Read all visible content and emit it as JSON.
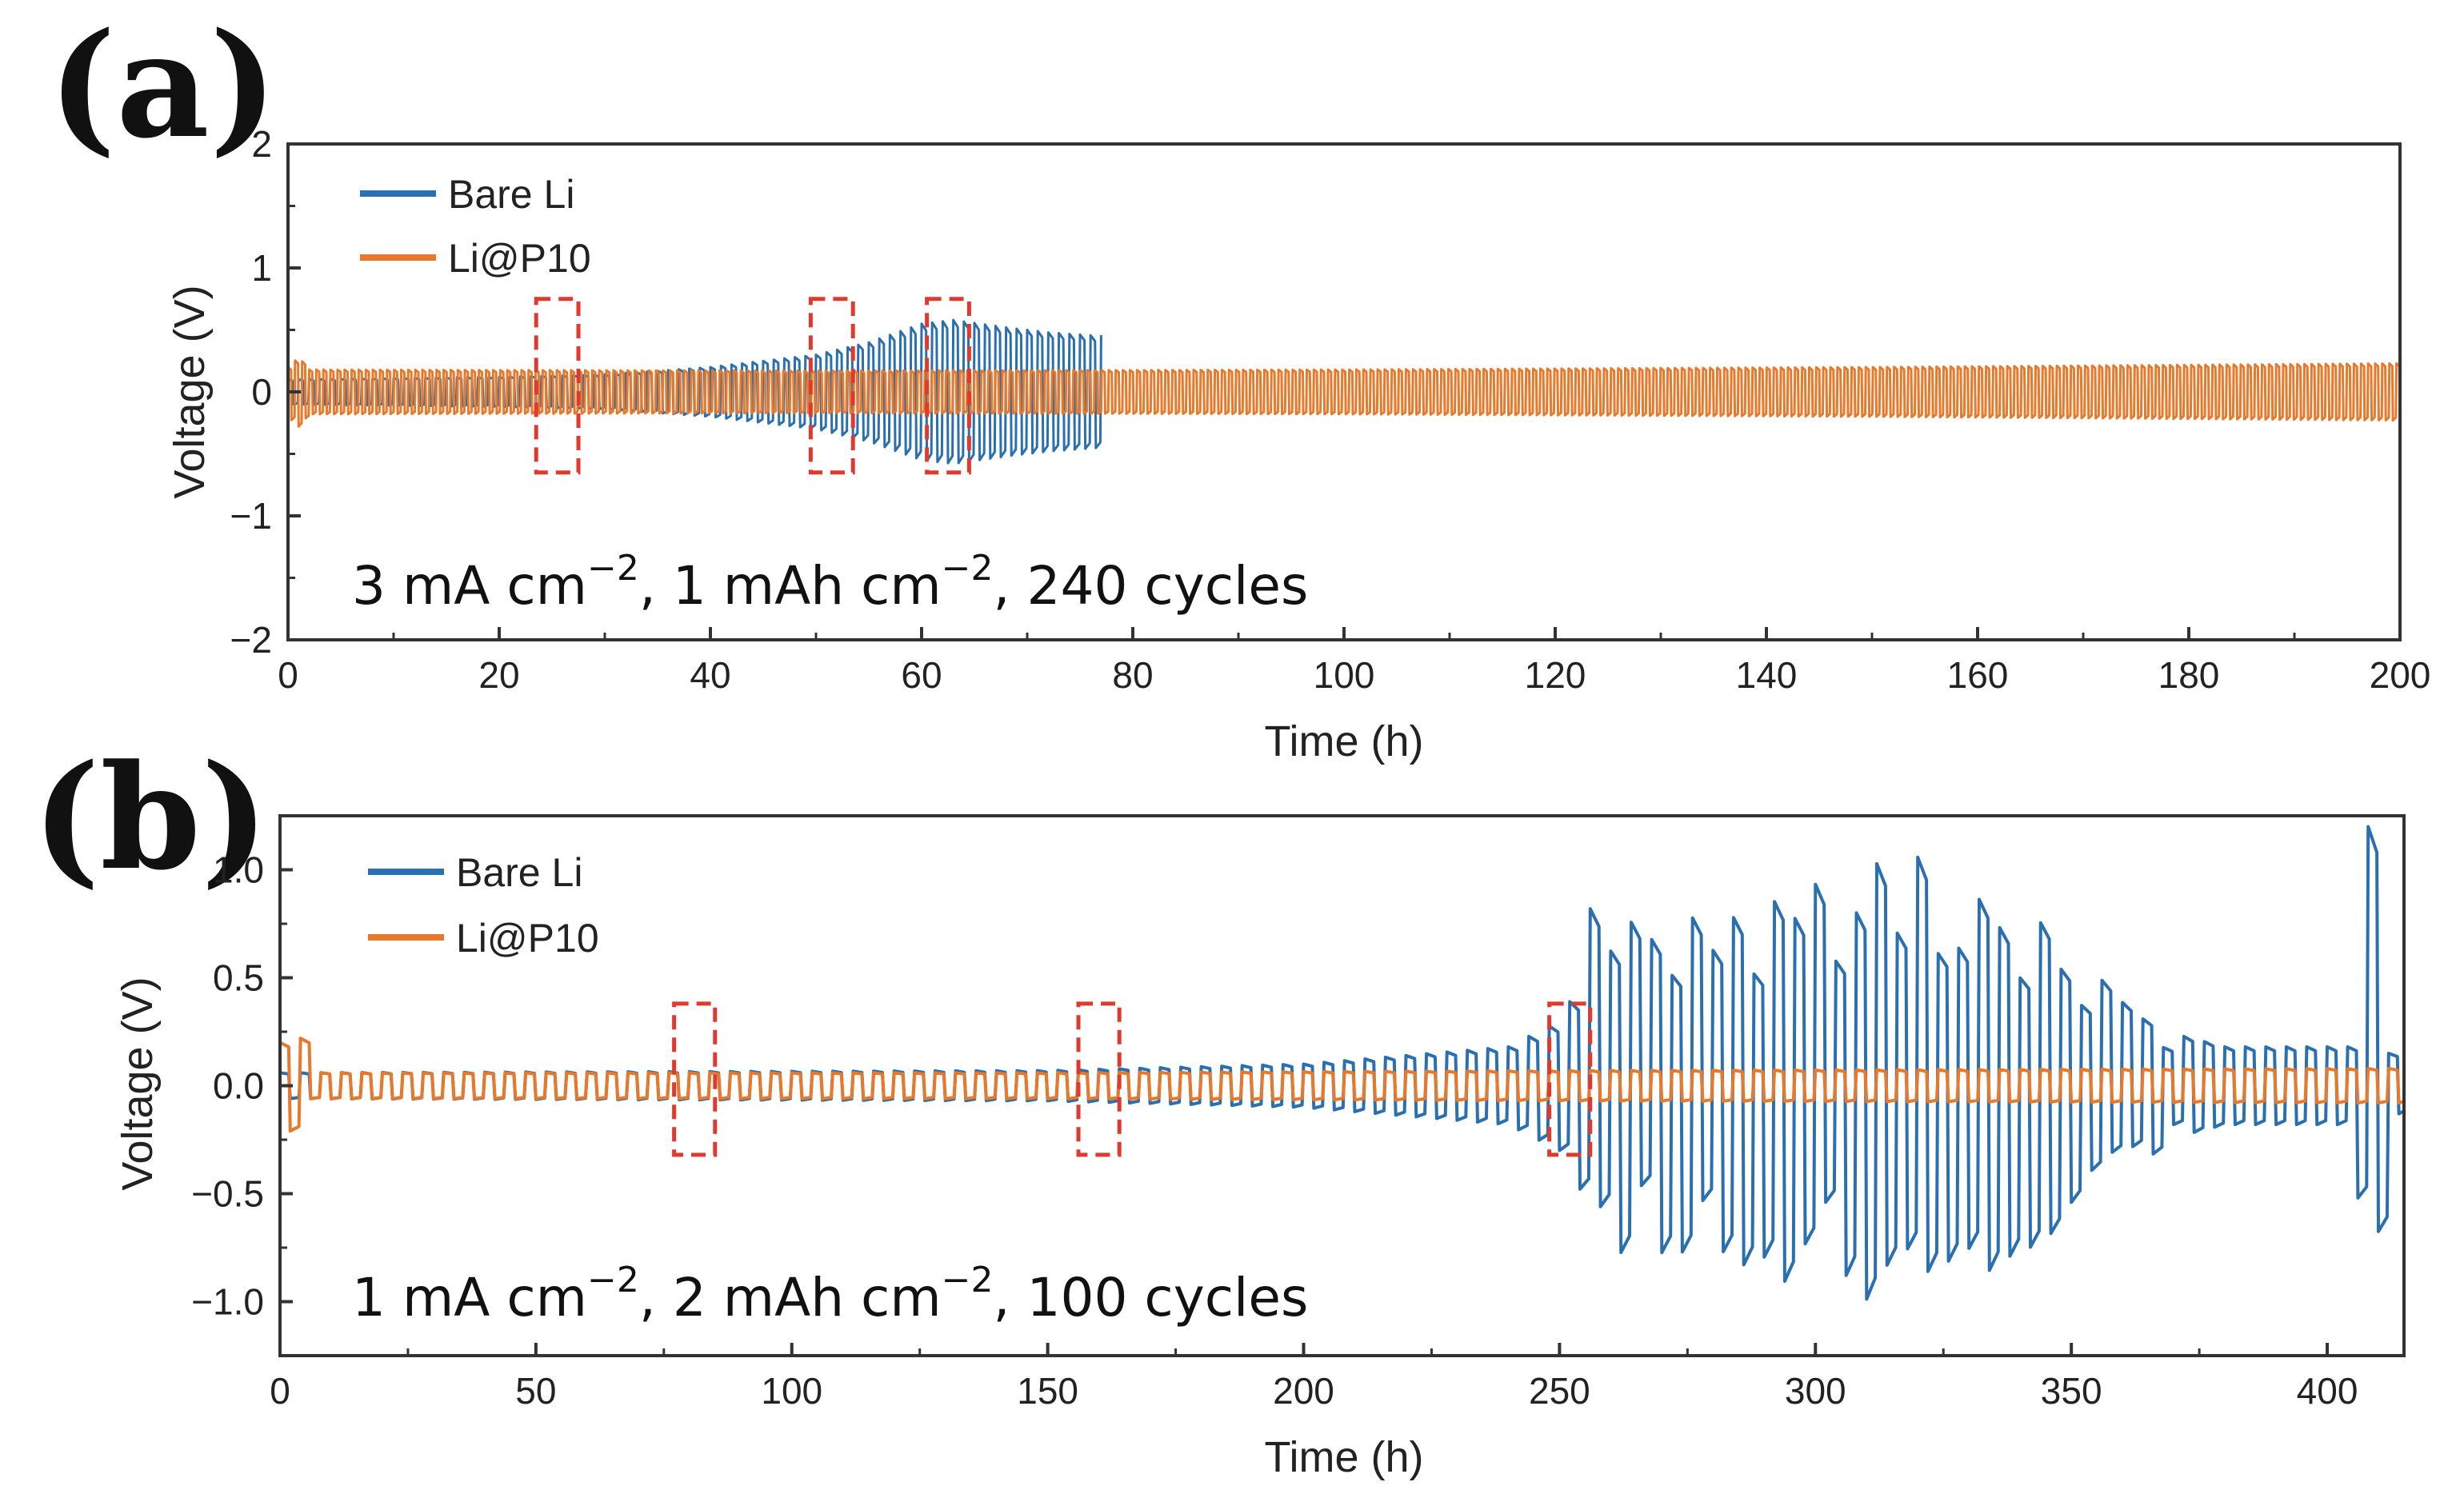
{
  "figure_labels": {
    "a": "(a)",
    "b": "(b)"
  },
  "chart_data": [
    {
      "id": "a",
      "type": "line",
      "title": "",
      "xlabel": "Time (h)",
      "ylabel": "Voltage (V)",
      "xlim": [
        0,
        200
      ],
      "ylim": [
        -2,
        2
      ],
      "xticks": [
        0,
        20,
        40,
        60,
        80,
        100,
        120,
        140,
        160,
        180,
        200
      ],
      "yticks": [
        -2,
        -1,
        0,
        1,
        2
      ],
      "xtick_labels": [
        "0",
        "20",
        "40",
        "60",
        "80",
        "100",
        "120",
        "140",
        "160",
        "180",
        "200"
      ],
      "ytick_labels": [
        "−2",
        "−1",
        "0",
        "1",
        "2"
      ],
      "legend": {
        "placement": "top-left"
      },
      "annotation": {
        "part1": "3 mA cm",
        "sup1": "−2",
        "part2": ", 1 mAh cm",
        "sup2": "−2",
        "part3": ", 240 cycles"
      },
      "highlight_windows": [
        [
          23.5,
          27.5,
          -0.65,
          0.75
        ],
        [
          49.5,
          53.5,
          -0.65,
          0.75
        ],
        [
          60.5,
          64.5,
          -0.65,
          0.75
        ]
      ],
      "series": [
        {
          "name": "Bare Li",
          "color": "#2a6fb0",
          "cycle_period_h": 1.0,
          "t_end": 77,
          "amplitude_envelope": [
            [
              0,
              0.1
            ],
            [
              20,
              0.12
            ],
            [
              30,
              0.14
            ],
            [
              40,
              0.2
            ],
            [
              50,
              0.3
            ],
            [
              55,
              0.4
            ],
            [
              60,
              0.55
            ],
            [
              63,
              0.58
            ],
            [
              68,
              0.52
            ],
            [
              72,
              0.48
            ],
            [
              77,
              0.45
            ]
          ]
        },
        {
          "name": "Li@P10",
          "color": "#e8792b",
          "cycle_period_h": 0.67,
          "t_end": 200,
          "amplitude_envelope": [
            [
              0,
              0.2
            ],
            [
              1,
              0.28
            ],
            [
              2,
              0.18
            ],
            [
              50,
              0.17
            ],
            [
              100,
              0.18
            ],
            [
              150,
              0.2
            ],
            [
              200,
              0.23
            ]
          ]
        }
      ]
    },
    {
      "id": "b",
      "type": "line",
      "title": "",
      "xlabel": "Time (h)",
      "ylabel": "Voltage (V)",
      "xlim": [
        0,
        415
      ],
      "ylim": [
        -1.25,
        1.25
      ],
      "xticks": [
        0,
        50,
        100,
        150,
        200,
        250,
        300,
        350,
        400
      ],
      "yticks": [
        -1.0,
        -0.5,
        0.0,
        0.5,
        1.0
      ],
      "xtick_labels": [
        "0",
        "50",
        "100",
        "150",
        "200",
        "250",
        "300",
        "350",
        "400"
      ],
      "ytick_labels": [
        "−1.0",
        "−0.5",
        "0.0",
        "0.5",
        "1.0"
      ],
      "legend": {
        "placement": "top-left"
      },
      "annotation": {
        "part1": "1 mA cm",
        "sup1": "−2",
        "part2": ", 2 mAh cm",
        "sup2": "−2",
        "part3": ", 100 cycles"
      },
      "highlight_windows": [
        [
          77,
          85,
          -0.32,
          0.38
        ],
        [
          156,
          164,
          -0.32,
          0.38
        ],
        [
          248,
          256,
          -0.32,
          0.38
        ]
      ],
      "series": [
        {
          "name": "Bare Li",
          "color": "#2a6fb0",
          "cycle_period_h": 4.0,
          "t_end": 415,
          "amplitude_envelope": [
            [
              0,
              0.06
            ],
            [
              150,
              0.07
            ],
            [
              200,
              0.1
            ],
            [
              240,
              0.18
            ],
            [
              250,
              0.3
            ],
            [
              255,
              0.65
            ],
            [
              280,
              0.65
            ],
            [
              300,
              0.75
            ],
            [
              320,
              0.85
            ],
            [
              340,
              0.7
            ],
            [
              360,
              0.3
            ],
            [
              380,
              0.18
            ],
            [
              405,
              0.18
            ],
            [
              408,
              1.2
            ],
            [
              412,
              0.15
            ],
            [
              415,
              0.12
            ]
          ]
        },
        {
          "name": "Li@P10",
          "color": "#e8792b",
          "cycle_period_h": 4.0,
          "t_end": 415,
          "amplitude_envelope": [
            [
              0,
              0.2
            ],
            [
              4,
              0.22
            ],
            [
              6,
              0.06
            ],
            [
              150,
              0.06
            ],
            [
              250,
              0.07
            ],
            [
              415,
              0.08
            ]
          ]
        }
      ]
    }
  ]
}
